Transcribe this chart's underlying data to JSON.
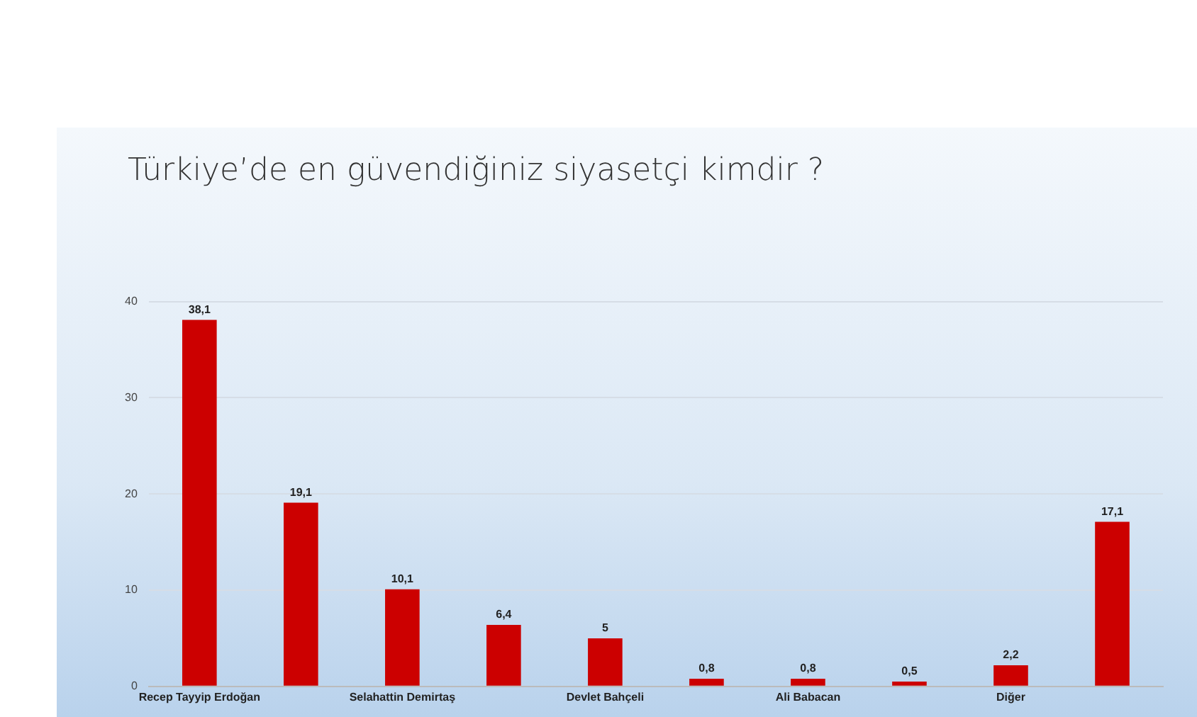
{
  "chart_data": {
    "type": "bar",
    "title": "Türkiye’de en güvendiğiniz siyasetçi  kimdir ?",
    "categories": [
      "Recep Tayyip Erdoğan",
      null,
      "Selahattin Demirtaş",
      null,
      "Devlet Bahçeli",
      null,
      "Ali Babacan",
      null,
      "Diğer",
      null
    ],
    "values": [
      38.1,
      19.1,
      10.1,
      6.4,
      5,
      0.8,
      0.8,
      0.5,
      2.2,
      17.1
    ],
    "value_labels": [
      "38,1",
      "19,1",
      "10,1",
      "6,4",
      "5",
      "0,8",
      "0,8",
      "0,5",
      "2,2",
      "17,1"
    ],
    "color": "#cc0000",
    "ylim": [
      0,
      40
    ],
    "yticks": [
      0,
      10,
      20,
      30,
      40
    ],
    "grid": "y"
  }
}
